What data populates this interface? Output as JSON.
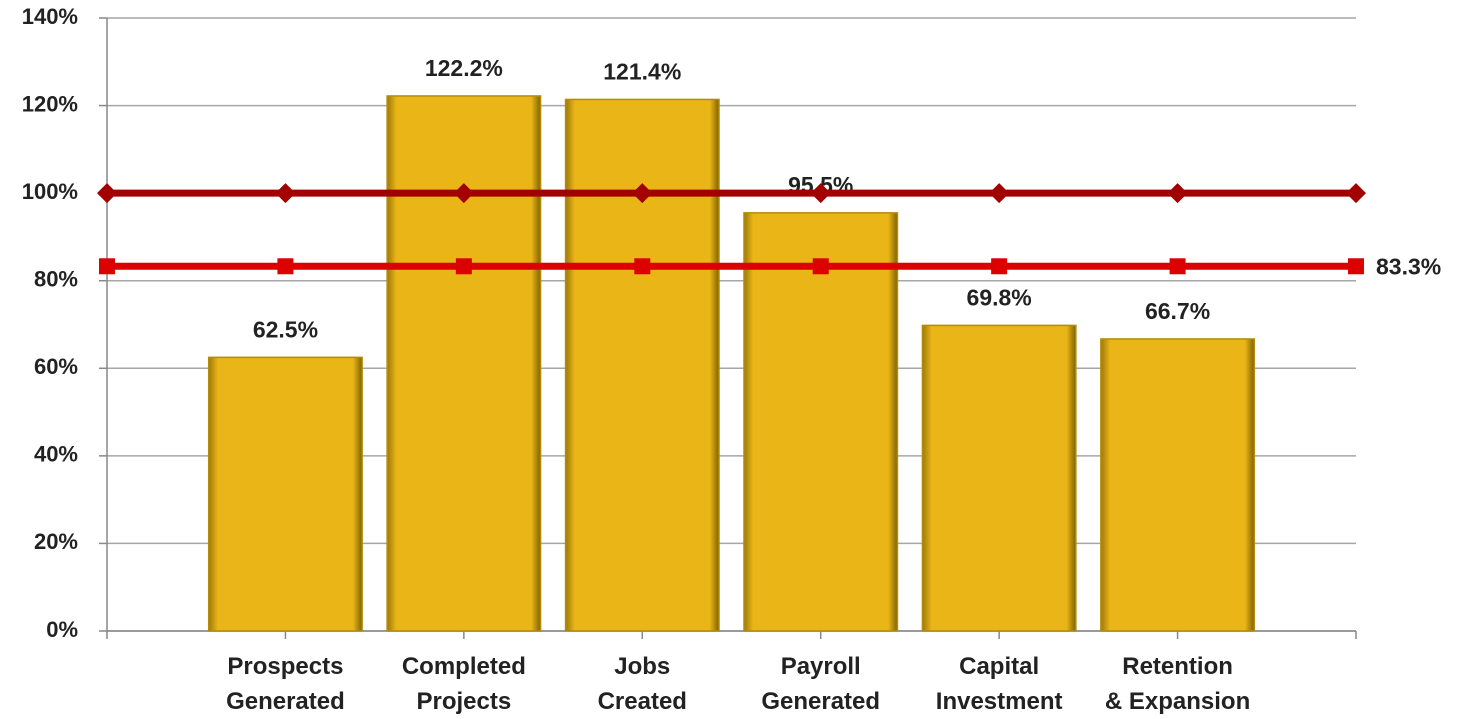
{
  "chart_data": {
    "type": "bar",
    "categories": [
      null,
      "Prospects\nGenerated",
      "Completed\nProjects",
      "Jobs\nCreated",
      "Payroll\nGenerated",
      "Capital\nInvestment",
      "Retention\n& Expansion",
      null
    ],
    "series": [
      {
        "type": "bar",
        "color": "#e9b517",
        "values": [
          null,
          62.5,
          122.2,
          121.4,
          95.5,
          69.8,
          66.7,
          null
        ],
        "value_labels": [
          null,
          "62.5%",
          "122.2%",
          "121.4%",
          "95.5%",
          "69.8%",
          "66.7%",
          null
        ]
      },
      {
        "type": "line",
        "color": "#a30000",
        "marker": "diamond",
        "values": [
          100,
          100,
          100,
          100,
          100,
          100,
          100,
          100
        ]
      },
      {
        "type": "line",
        "color": "#dc0000",
        "marker": "square",
        "values": [
          83.3,
          83.3,
          83.3,
          83.3,
          83.3,
          83.3,
          83.3,
          83.3
        ],
        "value_labels": [
          null,
          null,
          null,
          null,
          null,
          null,
          null,
          "83.3%"
        ]
      }
    ],
    "ylim": [
      0,
      140
    ],
    "yticks": [
      {
        "value": 0,
        "label": "0%"
      },
      {
        "value": 20,
        "label": "20%"
      },
      {
        "value": 40,
        "label": "40%"
      },
      {
        "value": 60,
        "label": "60%"
      },
      {
        "value": 80,
        "label": "80%"
      },
      {
        "value": 100,
        "label": "100%"
      },
      {
        "value": 120,
        "label": "120%"
      },
      {
        "value": 140,
        "label": "140%"
      }
    ],
    "grid": true
  }
}
